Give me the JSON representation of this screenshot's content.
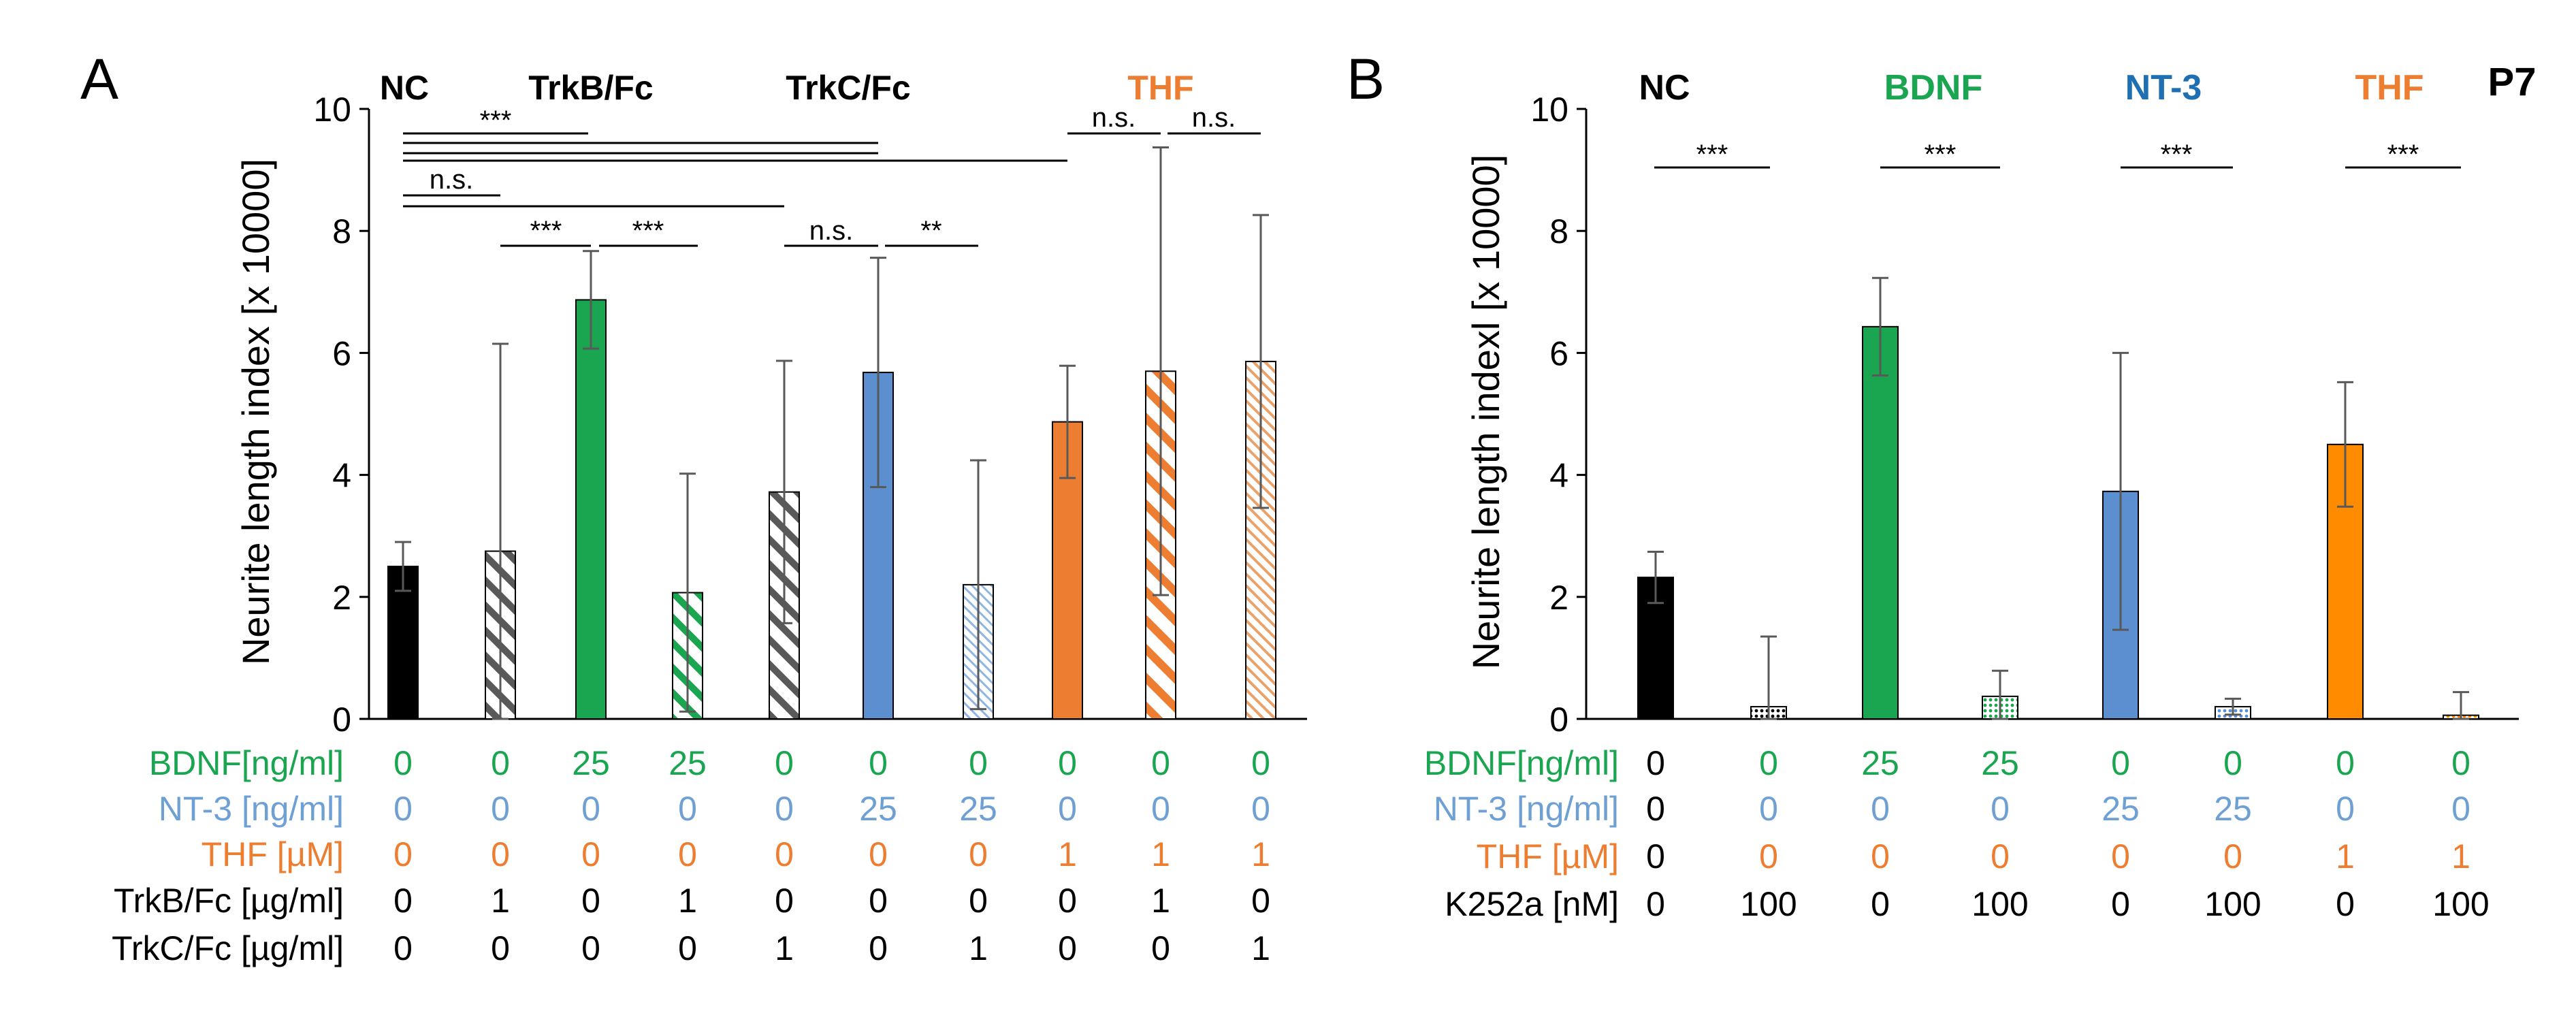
{
  "colors": {
    "black": "#000000",
    "green": "#1aa550",
    "blue": "#5b8fcf",
    "orange": "#ed7d31",
    "lightblue": "#6fa0d4",
    "gray": "#7f7f7f",
    "gray_pattern": "#595959",
    "light_orange": "#e9a26a"
  },
  "panel_a": {
    "letter": "A",
    "ylabel": "Neurite length index  [x 10000]",
    "yticks": [
      "0",
      "2",
      "4",
      "6",
      "8",
      "10"
    ],
    "headers": {
      "nc": "NC",
      "trkb": "TrkB/Fc",
      "trkc": "TrkC/Fc",
      "thf": "THF"
    },
    "sig": {
      "s1": "***",
      "s2": "n.s.",
      "s3": "***",
      "s4": "***",
      "s5": "n.s.",
      "s6": "**",
      "s7": "n.s.",
      "s8": "n.s."
    },
    "rows": [
      {
        "label": "BDNF[ng/ml]",
        "values": [
          "0",
          "0",
          "25",
          "25",
          "0",
          "0",
          "0",
          "0",
          "0",
          "0"
        ]
      },
      {
        "label": "NT-3 [ng/ml]",
        "values": [
          "0",
          "0",
          "0",
          "0",
          "0",
          "25",
          "25",
          "0",
          "0",
          "0"
        ]
      },
      {
        "label": "THF [µM]",
        "values": [
          "0",
          "0",
          "0",
          "0",
          "0",
          "0",
          "0",
          "1",
          "1",
          "1"
        ]
      },
      {
        "label": "TrkB/Fc [µg/ml]",
        "values": [
          "0",
          "1",
          "0",
          "1",
          "0",
          "0",
          "0",
          "0",
          "1",
          "0"
        ]
      },
      {
        "label": "TrkC/Fc [µg/ml]",
        "values": [
          "0",
          "0",
          "0",
          "0",
          "1",
          "0",
          "1",
          "0",
          "0",
          "1"
        ]
      }
    ]
  },
  "panel_b": {
    "letter": "B",
    "tag": "P7",
    "ylabel": "Neurite length indexl [x 10000]",
    "yticks": [
      "0",
      "2",
      "4",
      "6",
      "8",
      "10"
    ],
    "headers": {
      "nc": "NC",
      "bdnf": "BDNF",
      "nt3": "NT-3",
      "thf": "THF"
    },
    "sig": {
      "s1": "***",
      "s2": "***",
      "s3": "***",
      "s4": "***"
    },
    "rows": [
      {
        "label": "BDNF[ng/ml]",
        "values": [
          "0",
          "0",
          "25",
          "25",
          "0",
          "0",
          "0",
          "0"
        ]
      },
      {
        "label": "NT-3 [ng/ml]",
        "values": [
          "0",
          "0",
          "0",
          "0",
          "25",
          "25",
          "0",
          "0"
        ]
      },
      {
        "label": "THF [µM]",
        "values": [
          "0",
          "0",
          "0",
          "0",
          "0",
          "0",
          "1",
          "1"
        ]
      },
      {
        "label": "K252a [nM]",
        "values": [
          "0",
          "100",
          "0",
          "100",
          "0",
          "100",
          "0",
          "100"
        ]
      }
    ]
  },
  "chart_data": [
    {
      "type": "bar",
      "panel": "A",
      "title": "",
      "xlabel": "",
      "ylabel": "Neurite length index  [x 10000]",
      "ylim": [
        0,
        10
      ],
      "categories": [
        "1",
        "2",
        "3",
        "4",
        "5",
        "6",
        "7",
        "8",
        "9",
        "10"
      ],
      "values": [
        2.5,
        2.75,
        6.87,
        2.07,
        3.72,
        5.68,
        2.2,
        4.87,
        5.7,
        5.86
      ],
      "errors": [
        0.4,
        3.4,
        0.8,
        1.95,
        2.15,
        1.88,
        2.04,
        0.92,
        3.67,
        2.4
      ],
      "colors": [
        "#000000",
        "#595959",
        "#1aa550",
        "#1aa550",
        "#595959",
        "#5b8fcf",
        "#6fa0d4",
        "#ed7d31",
        "#ed7d31",
        "#e9a26a"
      ],
      "fills": [
        "solid",
        "hatch",
        "solid",
        "hatch",
        "hatch",
        "solid",
        "hatch",
        "solid",
        "hatch",
        "hatch"
      ]
    },
    {
      "type": "bar",
      "panel": "B",
      "title": "",
      "xlabel": "",
      "ylabel": "Neurite length indexl [x 10000]",
      "ylim": [
        0,
        10
      ],
      "categories": [
        "1",
        "2",
        "3",
        "4",
        "5",
        "6",
        "7",
        "8"
      ],
      "values": [
        2.32,
        0.2,
        6.43,
        0.37,
        3.73,
        0.2,
        4.5,
        0.06
      ],
      "errors": [
        0.42,
        1.15,
        0.8,
        0.42,
        2.27,
        0.13,
        1.02,
        0.38
      ],
      "colors": [
        "#000000",
        "#000000",
        "#1aa550",
        "#1aa550",
        "#5b8fcf",
        "#5b8fcf",
        "#ff8c00",
        "#ff8c00"
      ],
      "fills": [
        "solid",
        "dots",
        "solid",
        "dots",
        "solid",
        "dots",
        "solid",
        "dots"
      ]
    }
  ]
}
